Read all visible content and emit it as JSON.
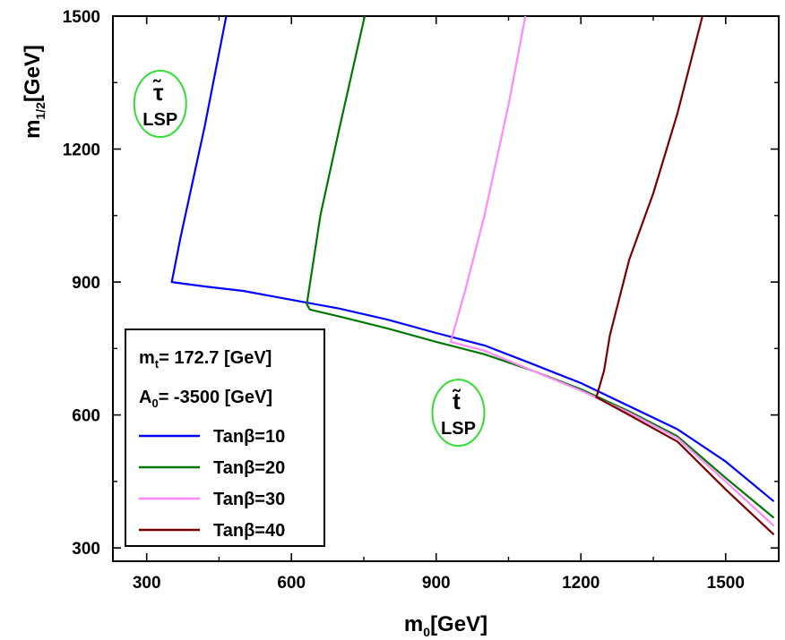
{
  "chart_data": {
    "type": "line",
    "title": "",
    "x_axis": {
      "label_main": "m",
      "label_sub": "0",
      "label_unit": "[GeV]",
      "range": [
        230,
        1610
      ],
      "ticks": [
        300,
        600,
        900,
        1200,
        1500
      ],
      "tick_labels": [
        "300",
        "600",
        "900",
        "1200",
        "1500"
      ]
    },
    "y_axis": {
      "label_main": "m",
      "label_sub": "1/2",
      "label_unit": "[GeV]",
      "range": [
        270,
        1500
      ],
      "ticks": [
        300,
        600,
        900,
        1200,
        1500
      ],
      "tick_labels": [
        "300",
        "600",
        "900",
        "1200",
        "1500"
      ]
    },
    "grid": false,
    "legend": {
      "placement": "bottom-left",
      "param_lines": [
        {
          "main": "m",
          "sub": "t",
          "rest": "= 172.7  [GeV]"
        },
        {
          "main": "A",
          "sub": "0",
          "rest": "= -3500  [GeV]"
        }
      ]
    },
    "series": [
      {
        "name": "Tanβ=10",
        "color": "#0000ff",
        "x": [
          465,
          420,
          370,
          352,
          420,
          500,
          600,
          700,
          800,
          900,
          1000,
          1100,
          1200,
          1300,
          1400,
          1500,
          1600
        ],
        "y": [
          1500,
          1250,
          1000,
          900,
          890,
          880,
          860,
          840,
          815,
          785,
          757,
          715,
          672,
          620,
          568,
          495,
          405
        ]
      },
      {
        "name": "Tanβ=20",
        "color": "#007700",
        "x": [
          752,
          700,
          660,
          632,
          638,
          700,
          800,
          900,
          1000,
          1100,
          1200,
          1300,
          1400,
          1500,
          1600
        ],
        "y": [
          1500,
          1250,
          1050,
          850,
          838,
          822,
          795,
          765,
          737,
          700,
          658,
          608,
          552,
          458,
          368
        ]
      },
      {
        "name": "Tanβ=30",
        "color": "#ff88ff",
        "x": [
          1085,
          1050,
          1000,
          960,
          930,
          1000,
          1100,
          1200,
          1300,
          1400,
          1500,
          1600
        ],
        "y": [
          1500,
          1300,
          1050,
          880,
          765,
          745,
          700,
          655,
          605,
          548,
          450,
          350
        ]
      },
      {
        "name": "Tanβ=40",
        "color": "#7a0000",
        "x": [
          1452,
          1400,
          1350,
          1300,
          1260,
          1248,
          1232,
          1300,
          1400,
          1500,
          1600
        ],
        "y": [
          1500,
          1280,
          1100,
          950,
          780,
          700,
          640,
          600,
          540,
          432,
          330
        ]
      }
    ],
    "annotations": [
      {
        "glyph": "τ̃",
        "text": "LSP",
        "x": 328,
        "y": 1302
      },
      {
        "glyph": "t̃",
        "text": "LSP",
        "x": 946,
        "y": 605
      }
    ]
  }
}
